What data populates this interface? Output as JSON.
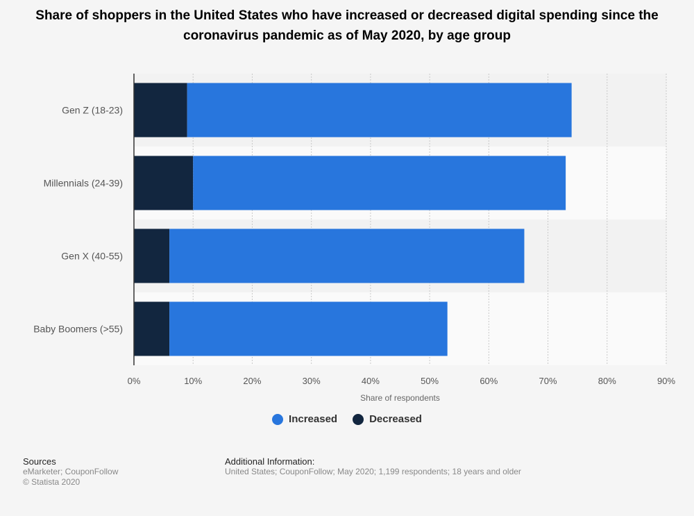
{
  "chart_data": {
    "type": "bar",
    "orientation": "horizontal",
    "stacked": true,
    "title": "Share of shoppers in the United States who have increased or decreased digital spending since the coronavirus pandemic as of May 2020, by age group",
    "categories": [
      "Gen Z (18-23)",
      "Millennials (24-39)",
      "Gen X (40-55)",
      "Baby Boomers (>55)"
    ],
    "series": [
      {
        "name": "Decreased",
        "color": "#12263f",
        "values": [
          9,
          10,
          6,
          6
        ]
      },
      {
        "name": "Increased",
        "color": "#2876dd",
        "values": [
          65,
          63,
          60,
          47
        ]
      }
    ],
    "xlabel": "Share of respondents",
    "ylabel": "",
    "xlim": [
      0,
      90
    ],
    "xticks": [
      "0%",
      "10%",
      "20%",
      "30%",
      "40%",
      "50%",
      "60%",
      "70%",
      "80%",
      "90%"
    ],
    "grid": true,
    "legend_position": "bottom",
    "legend": [
      {
        "name": "Increased",
        "color": "#2876dd"
      },
      {
        "name": "Decreased",
        "color": "#12263f"
      }
    ]
  },
  "footer": {
    "sources_title": "Sources",
    "sources_line1": "eMarketer; CouponFollow",
    "sources_line2": "© Statista 2020",
    "additional_title": "Additional Information:",
    "additional_text": "United States; CouponFollow; May 2020; 1,199 respondents; 18 years and older"
  }
}
